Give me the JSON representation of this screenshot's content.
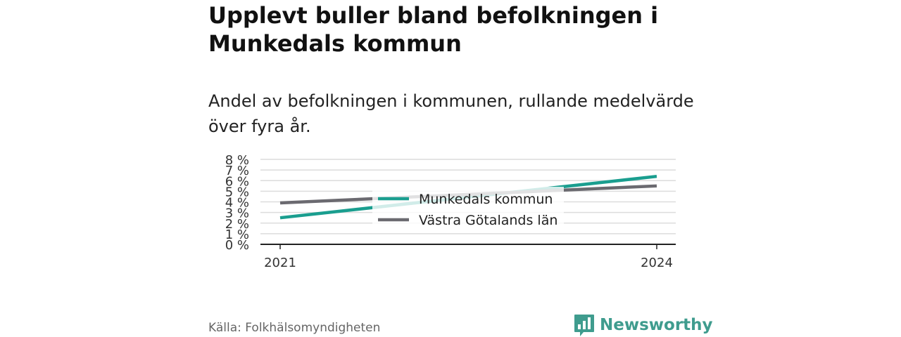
{
  "title": "Upplevt buller bland befolkningen i Munkedals kommun",
  "subtitle": "Andel av befolkningen i kommunen, rullande medelvärde över fyra år.",
  "source": "Källa: Folkhälsomyndigheten",
  "brand": "Newsworthy",
  "colors": {
    "series1": "#1a9e8f",
    "series2": "#6b6a70",
    "brand": "#3f9c8e"
  },
  "chart_data": {
    "type": "line",
    "x": [
      2021,
      2024
    ],
    "xticks": [
      "2021",
      "2024"
    ],
    "ylim": [
      0,
      8
    ],
    "yticks": [
      "0 %",
      "1 %",
      "2 %",
      "3 %",
      "4 %",
      "5 %",
      "6 %",
      "7 %",
      "8 %"
    ],
    "grid": true,
    "legend_position": "center",
    "series": [
      {
        "name": "Munkedals kommun",
        "values": [
          2.5,
          6.4
        ]
      },
      {
        "name": "Västra Götalands län",
        "values": [
          3.9,
          5.5
        ]
      }
    ]
  }
}
